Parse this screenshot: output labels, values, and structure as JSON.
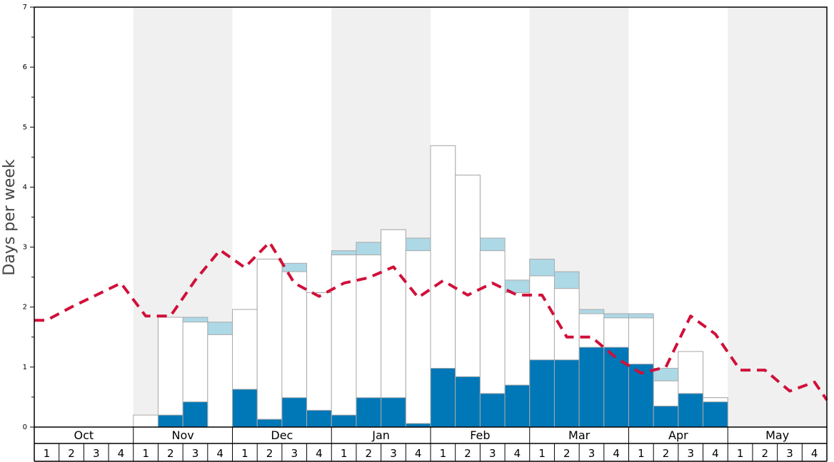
{
  "chart_data": {
    "type": "bar",
    "ylabel": "Days per week",
    "ylim": [
      0,
      7
    ],
    "yticks": [
      "0",
      "1",
      "2",
      "3",
      "4",
      "5",
      "6",
      "7"
    ],
    "months": [
      "Oct",
      "Nov",
      "Dec",
      "Jan",
      "Feb",
      "Mar",
      "Apr",
      "May"
    ],
    "week_labels": [
      "1",
      "2",
      "3",
      "4"
    ],
    "shaded_months": [
      "Nov",
      "Jan",
      "Mar",
      "May"
    ],
    "colors": {
      "dark_bar": "#0077b6",
      "light_bar": "#add8e6",
      "total_bar": "#ffffff",
      "bar_stroke": "#aaaaaa",
      "line": "#d0103a",
      "shade": "#f0f0f0"
    },
    "series": [
      {
        "key": "dark",
        "values": [
          0,
          0,
          0,
          0,
          0,
          0.2,
          0.42,
          0,
          0.63,
          0.13,
          0.49,
          0.28,
          0.2,
          0.49,
          0.49,
          0.06,
          0.98,
          0.84,
          0.56,
          0.7,
          1.12,
          1.12,
          1.33,
          1.33,
          1.05,
          0.35,
          0.56,
          0.42,
          0,
          0,
          0,
          0
        ]
      },
      {
        "key": "light",
        "values": [
          0,
          0,
          0,
          0,
          0,
          1.83,
          1.83,
          1.75,
          1.96,
          2.8,
          2.73,
          2.24,
          2.94,
          3.08,
          3.29,
          3.15,
          4.69,
          4.2,
          3.15,
          2.45,
          2.8,
          2.59,
          1.96,
          1.89,
          1.89,
          0.98,
          1.26,
          0.49,
          0,
          0,
          0,
          0
        ]
      },
      {
        "key": "total",
        "values": [
          0,
          0,
          0,
          0,
          0.2,
          1.83,
          1.75,
          1.54,
          1.96,
          2.8,
          2.59,
          2.24,
          2.87,
          2.87,
          3.29,
          2.94,
          4.69,
          4.2,
          2.94,
          2.24,
          2.52,
          2.31,
          1.89,
          1.82,
          1.82,
          0.77,
          1.26,
          0.49,
          0,
          0,
          0,
          0
        ]
      },
      {
        "key": "line",
        "values": [
          1.78,
          2.0,
          2.2,
          2.4,
          1.85,
          1.85,
          2.45,
          2.95,
          2.66,
          3.08,
          2.4,
          2.18,
          2.4,
          2.49,
          2.67,
          2.16,
          2.44,
          2.2,
          2.4,
          2.2,
          2.2,
          1.5,
          1.5,
          1.15,
          0.9,
          1.0,
          1.85,
          1.55,
          0.95,
          0.95,
          0.6,
          0.75
        ]
      }
    ],
    "end_line_value": 0.45
  }
}
